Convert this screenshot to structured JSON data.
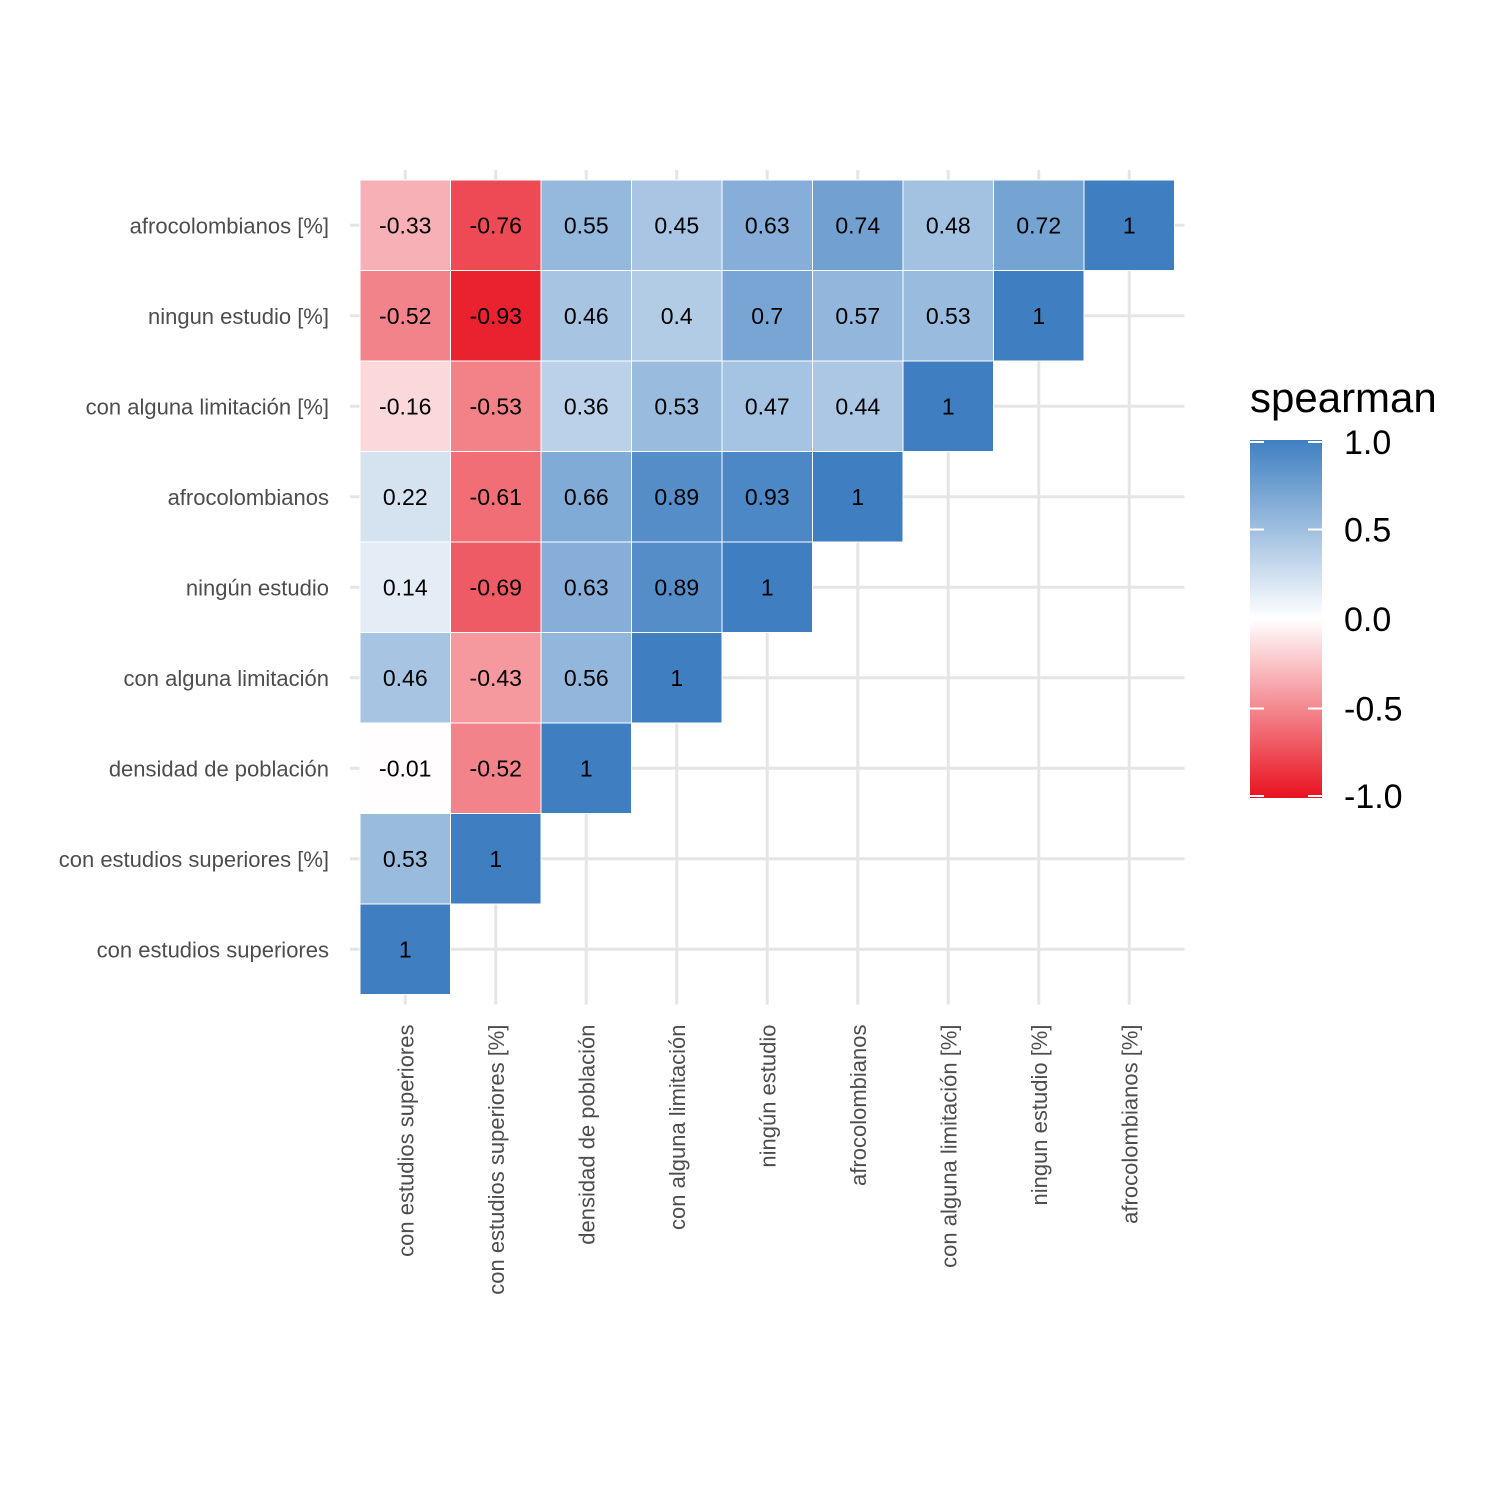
{
  "chart_data": {
    "type": "heatmap",
    "variables": [
      "con estudios superiores",
      "con estudios superiores [%]",
      "densidad de población",
      "con alguna limitación",
      "ningún estudio",
      "afrocolombianos",
      "con alguna limitación [%]",
      "ningun estudio [%]",
      "afrocolombianos [%]"
    ],
    "y_order_bottom_to_top": [
      "con estudios superiores",
      "con estudios superiores [%]",
      "densidad de población",
      "con alguna limitación",
      "ningún estudio",
      "afrocolombianos",
      "con alguna limitación [%]",
      "ningun estudio [%]",
      "afrocolombianos [%]"
    ],
    "cells": [
      {
        "x": "con estudios superiores",
        "y": "con estudios superiores",
        "value": 1,
        "label": "1"
      },
      {
        "x": "con estudios superiores",
        "y": "con estudios superiores [%]",
        "value": 0.53,
        "label": "0.53"
      },
      {
        "x": "con estudios superiores [%]",
        "y": "con estudios superiores [%]",
        "value": 1,
        "label": "1"
      },
      {
        "x": "con estudios superiores",
        "y": "densidad de población",
        "value": -0.01,
        "label": "-0.01"
      },
      {
        "x": "con estudios superiores [%]",
        "y": "densidad de población",
        "value": -0.52,
        "label": "-0.52"
      },
      {
        "x": "densidad de población",
        "y": "densidad de población",
        "value": 1,
        "label": "1"
      },
      {
        "x": "con estudios superiores",
        "y": "con alguna limitación",
        "value": 0.46,
        "label": "0.46"
      },
      {
        "x": "con estudios superiores [%]",
        "y": "con alguna limitación",
        "value": -0.43,
        "label": "-0.43"
      },
      {
        "x": "densidad de población",
        "y": "con alguna limitación",
        "value": 0.56,
        "label": "0.56"
      },
      {
        "x": "con alguna limitación",
        "y": "con alguna limitación",
        "value": 1,
        "label": "1"
      },
      {
        "x": "con estudios superiores",
        "y": "ningún estudio",
        "value": 0.14,
        "label": "0.14"
      },
      {
        "x": "con estudios superiores [%]",
        "y": "ningún estudio",
        "value": -0.69,
        "label": "-0.69"
      },
      {
        "x": "densidad de población",
        "y": "ningún estudio",
        "value": 0.63,
        "label": "0.63"
      },
      {
        "x": "con alguna limitación",
        "y": "ningún estudio",
        "value": 0.89,
        "label": "0.89"
      },
      {
        "x": "ningún estudio",
        "y": "ningún estudio",
        "value": 1,
        "label": "1"
      },
      {
        "x": "con estudios superiores",
        "y": "afrocolombianos",
        "value": 0.22,
        "label": "0.22"
      },
      {
        "x": "con estudios superiores [%]",
        "y": "afrocolombianos",
        "value": -0.61,
        "label": "-0.61"
      },
      {
        "x": "densidad de población",
        "y": "afrocolombianos",
        "value": 0.66,
        "label": "0.66"
      },
      {
        "x": "con alguna limitación",
        "y": "afrocolombianos",
        "value": 0.89,
        "label": "0.89"
      },
      {
        "x": "ningún estudio",
        "y": "afrocolombianos",
        "value": 0.93,
        "label": "0.93"
      },
      {
        "x": "afrocolombianos",
        "y": "afrocolombianos",
        "value": 1,
        "label": "1"
      },
      {
        "x": "con estudios superiores",
        "y": "con alguna limitación [%]",
        "value": -0.16,
        "label": "-0.16"
      },
      {
        "x": "con estudios superiores [%]",
        "y": "con alguna limitación [%]",
        "value": -0.53,
        "label": "-0.53"
      },
      {
        "x": "densidad de población",
        "y": "con alguna limitación [%]",
        "value": 0.36,
        "label": "0.36"
      },
      {
        "x": "con alguna limitación",
        "y": "con alguna limitación [%]",
        "value": 0.53,
        "label": "0.53"
      },
      {
        "x": "ningún estudio",
        "y": "con alguna limitación [%]",
        "value": 0.47,
        "label": "0.47"
      },
      {
        "x": "afrocolombianos",
        "y": "con alguna limitación [%]",
        "value": 0.44,
        "label": "0.44"
      },
      {
        "x": "con alguna limitación [%]",
        "y": "con alguna limitación [%]",
        "value": 1,
        "label": "1"
      },
      {
        "x": "con estudios superiores",
        "y": "ningun estudio [%]",
        "value": -0.52,
        "label": "-0.52"
      },
      {
        "x": "con estudios superiores [%]",
        "y": "ningun estudio [%]",
        "value": -0.93,
        "label": "-0.93"
      },
      {
        "x": "densidad de población",
        "y": "ningun estudio [%]",
        "value": 0.46,
        "label": "0.46"
      },
      {
        "x": "con alguna limitación",
        "y": "ningun estudio [%]",
        "value": 0.4,
        "label": "0.4"
      },
      {
        "x": "ningún estudio",
        "y": "ningun estudio [%]",
        "value": 0.7,
        "label": "0.7"
      },
      {
        "x": "afrocolombianos",
        "y": "ningun estudio [%]",
        "value": 0.57,
        "label": "0.57"
      },
      {
        "x": "con alguna limitación [%]",
        "y": "ningun estudio [%]",
        "value": 0.53,
        "label": "0.53"
      },
      {
        "x": "ningun estudio [%]",
        "y": "ningun estudio [%]",
        "value": 1,
        "label": "1"
      },
      {
        "x": "con estudios superiores",
        "y": "afrocolombianos [%]",
        "value": -0.33,
        "label": "-0.33"
      },
      {
        "x": "con estudios superiores [%]",
        "y": "afrocolombianos [%]",
        "value": -0.76,
        "label": "-0.76"
      },
      {
        "x": "densidad de población",
        "y": "afrocolombianos [%]",
        "value": 0.55,
        "label": "0.55"
      },
      {
        "x": "con alguna limitación",
        "y": "afrocolombianos [%]",
        "value": 0.45,
        "label": "0.45"
      },
      {
        "x": "ningún estudio",
        "y": "afrocolombianos [%]",
        "value": 0.63,
        "label": "0.63"
      },
      {
        "x": "afrocolombianos",
        "y": "afrocolombianos [%]",
        "value": 0.74,
        "label": "0.74"
      },
      {
        "x": "con alguna limitación [%]",
        "y": "afrocolombianos [%]",
        "value": 0.48,
        "label": "0.48"
      },
      {
        "x": "ningun estudio [%]",
        "y": "afrocolombianos [%]",
        "value": 0.72,
        "label": "0.72"
      },
      {
        "x": "afrocolombianos [%]",
        "y": "afrocolombianos [%]",
        "value": 1,
        "label": "1"
      }
    ],
    "legend": {
      "title": "spearman",
      "placement": "right",
      "breaks": [
        1.0,
        0.5,
        0.0,
        -0.5,
        -1.0
      ],
      "break_labels": [
        "1.0",
        "0.5",
        "0.0",
        "-0.5",
        "-1.0"
      ],
      "range": [
        -1,
        1
      ]
    },
    "colors": {
      "low": "#e8111f",
      "mid": "#ffffff",
      "high": "#3f7fc1",
      "grid": "#e5e5e5",
      "tile_border": "#ffffff"
    },
    "grid": true
  }
}
